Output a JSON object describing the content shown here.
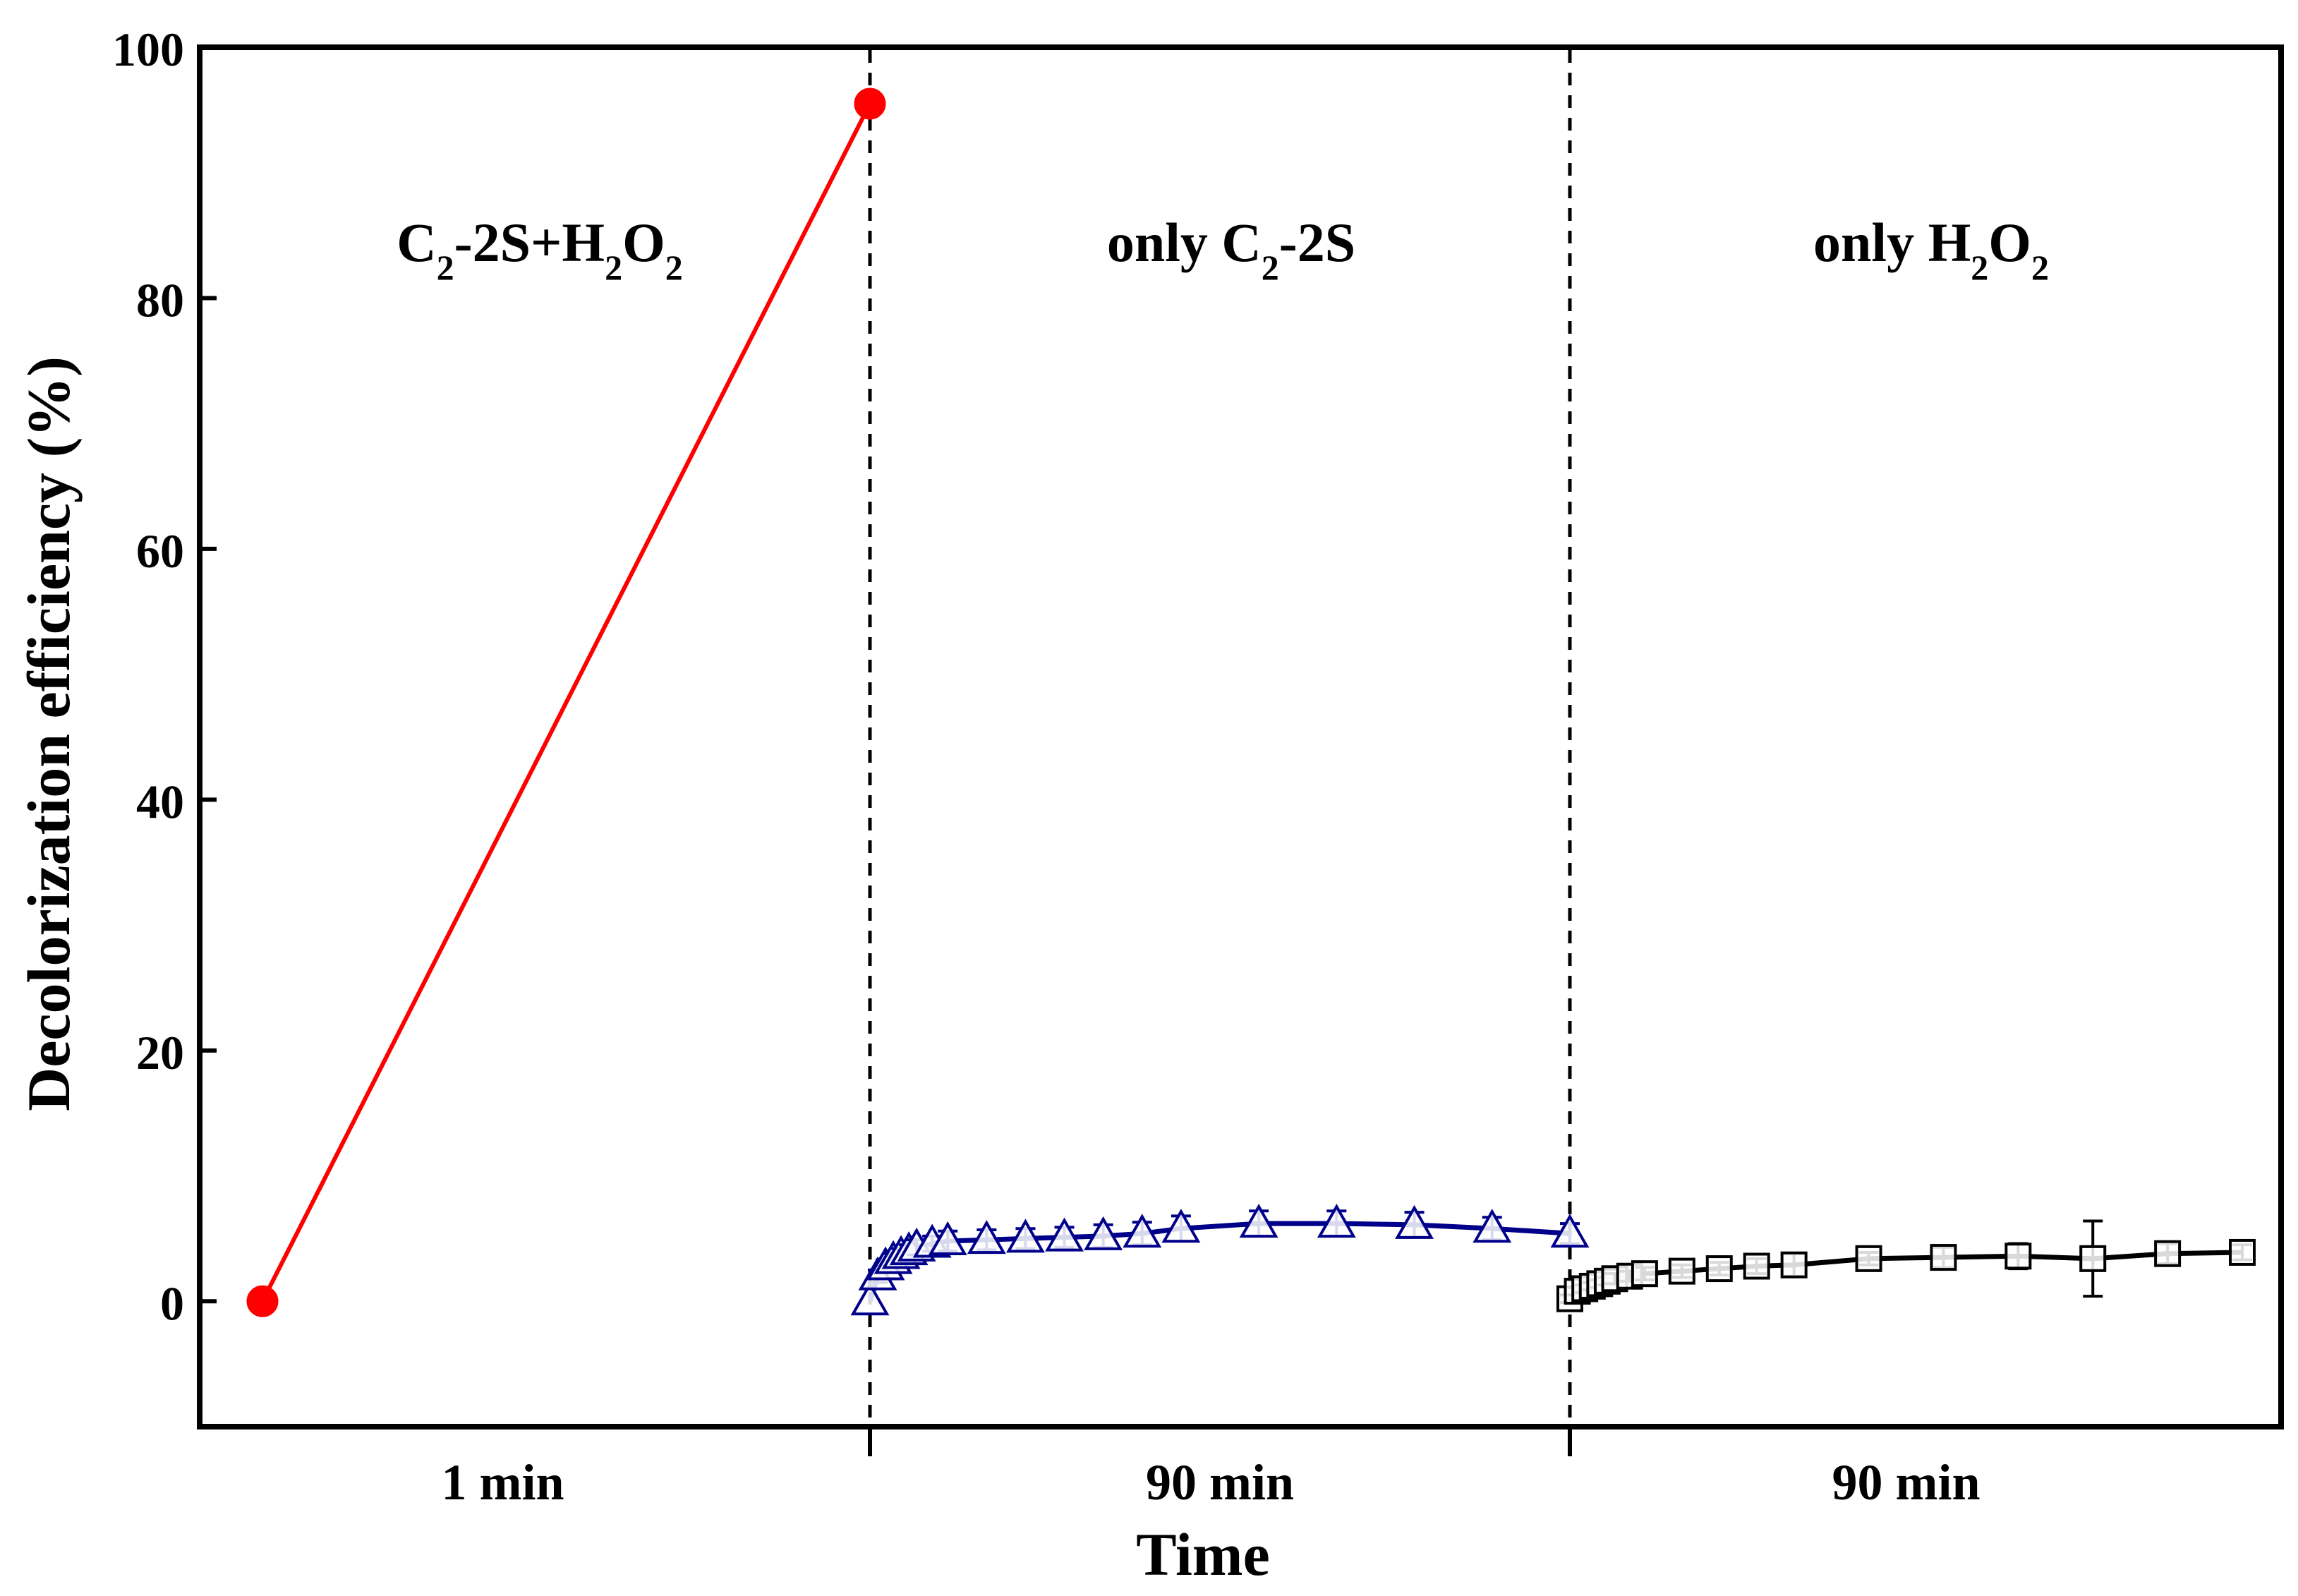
{
  "chart_data": {
    "type": "line",
    "xlabel": "Time",
    "ylabel": "Decolorization efficiency (%)",
    "ylim": [
      -10,
      100
    ],
    "yticks": [
      0,
      20,
      40,
      60,
      80,
      100
    ],
    "grid": false,
    "legend": "none",
    "segments": [
      {
        "label_parts": [
          "C",
          "2",
          "-2S+H",
          "2",
          "O",
          "2"
        ],
        "duration": "1 min"
      },
      {
        "label_parts": [
          "only C",
          "2",
          "-2S"
        ],
        "duration": "90 min"
      },
      {
        "label_parts": [
          "only H",
          "2",
          "O",
          "2"
        ],
        "duration": "90 min"
      }
    ],
    "series": [
      {
        "segment": 0,
        "color": "#ff0000",
        "marker": "filled-circle",
        "x": [
          0,
          1
        ],
        "y": [
          0,
          95.5
        ],
        "err": [
          0,
          0
        ]
      },
      {
        "segment": 1,
        "color": "#00008b",
        "marker": "open-triangle",
        "x": [
          0,
          1,
          2,
          3,
          4,
          5,
          6,
          8,
          10,
          15,
          20,
          25,
          30,
          35,
          40,
          50,
          60,
          70,
          80,
          90
        ],
        "y": [
          0,
          2.0,
          2.8,
          3.3,
          3.7,
          4.0,
          4.3,
          4.6,
          4.8,
          4.9,
          5.0,
          5.1,
          5.2,
          5.4,
          5.8,
          6.2,
          6.2,
          6.1,
          5.8,
          5.4
        ],
        "err": [
          0,
          0.5,
          0.5,
          0.5,
          0.5,
          0.5,
          0.6,
          0.6,
          0.8,
          0.8,
          0.8,
          0.8,
          0.9,
          0.9,
          1.0,
          1.0,
          1.0,
          1.0,
          0.9,
          0.8
        ]
      },
      {
        "segment": 2,
        "color": "#000000",
        "marker": "open-square",
        "x": [
          0,
          1,
          2,
          3,
          4,
          5,
          6,
          8,
          10,
          15,
          20,
          25,
          30,
          40,
          50,
          60,
          70,
          80,
          90
        ],
        "y": [
          0.2,
          0.8,
          1.0,
          1.2,
          1.4,
          1.6,
          1.8,
          2.0,
          2.2,
          2.4,
          2.6,
          2.8,
          2.9,
          3.4,
          3.5,
          3.6,
          3.4,
          3.8,
          3.9
        ],
        "err": [
          0.3,
          0.3,
          0.3,
          0.3,
          0.3,
          0.3,
          0.4,
          0.4,
          0.5,
          0.5,
          0.5,
          0.6,
          0.9,
          0.5,
          0.8,
          1.0,
          3.0,
          0.8,
          0.6
        ]
      }
    ]
  }
}
